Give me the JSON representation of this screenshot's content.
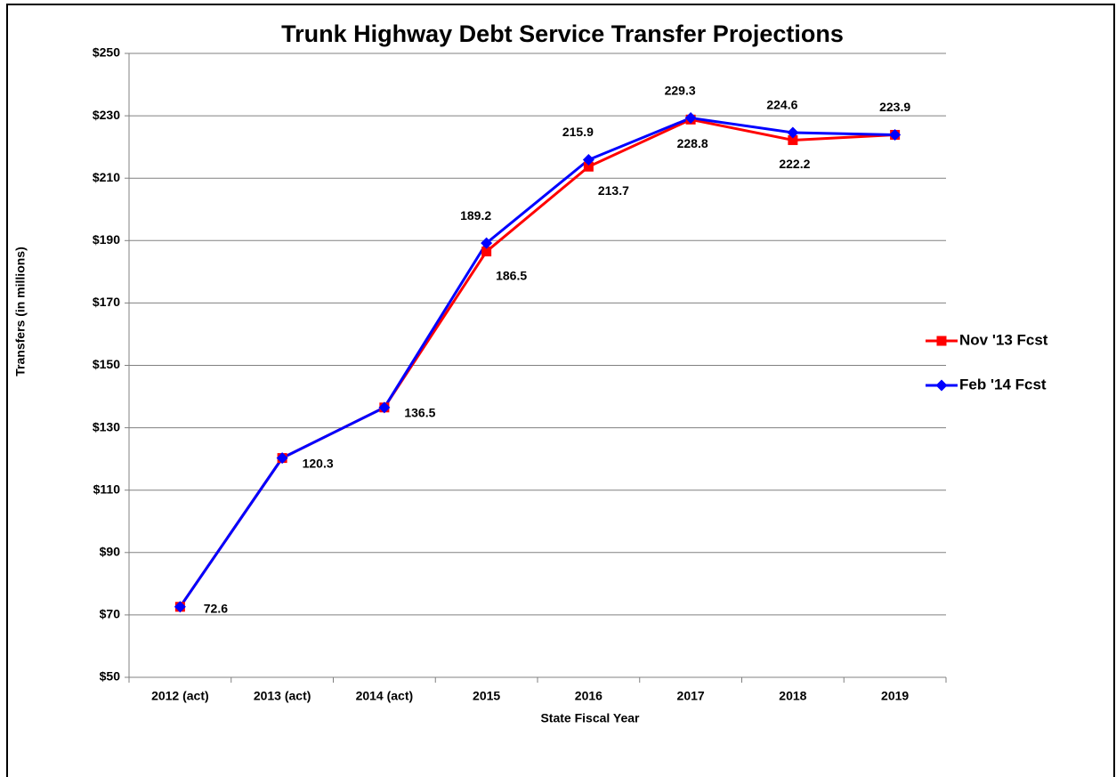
{
  "chart_data": {
    "type": "line",
    "title": "Trunk Highway Debt Service Transfer Projections",
    "x_label": "State Fiscal Year",
    "y_label": "Transfers (in millions)",
    "categories": [
      "2012 (act)",
      "2013 (act)",
      "2014 (act)",
      "2015",
      "2016",
      "2017",
      "2018",
      "2019"
    ],
    "series": [
      {
        "name": "Nov '13 Fcst",
        "color": "#ff0000",
        "marker": "square",
        "values": [
          72.6,
          120.3,
          136.5,
          186.5,
          213.7,
          228.8,
          222.2,
          223.9
        ],
        "value_labels": [
          "72.6",
          "120.3",
          "136.5",
          "186.5",
          "213.7",
          "228.8",
          "222.2",
          null
        ]
      },
      {
        "name": "Feb '14 Fcst",
        "color": "#0000ff",
        "marker": "diamond",
        "values": [
          72.6,
          120.3,
          136.5,
          189.2,
          215.9,
          229.3,
          224.6,
          223.9
        ],
        "value_labels": [
          null,
          null,
          null,
          "189.2",
          "215.9",
          "229.3",
          "224.6",
          "223.9"
        ]
      }
    ],
    "ylim": [
      50,
      250
    ],
    "yticks": [
      {
        "value": 50,
        "label": "$50"
      },
      {
        "value": 70,
        "label": "$70"
      },
      {
        "value": 90,
        "label": "$90"
      },
      {
        "value": 110,
        "label": "$110"
      },
      {
        "value": 130,
        "label": "$130"
      },
      {
        "value": 150,
        "label": "$150"
      },
      {
        "value": 170,
        "label": "$170"
      },
      {
        "value": 190,
        "label": "$190"
      },
      {
        "value": 210,
        "label": "$210"
      },
      {
        "value": 230,
        "label": "$230"
      },
      {
        "value": 250,
        "label": "$250"
      }
    ],
    "grid": true,
    "legend": "right"
  }
}
